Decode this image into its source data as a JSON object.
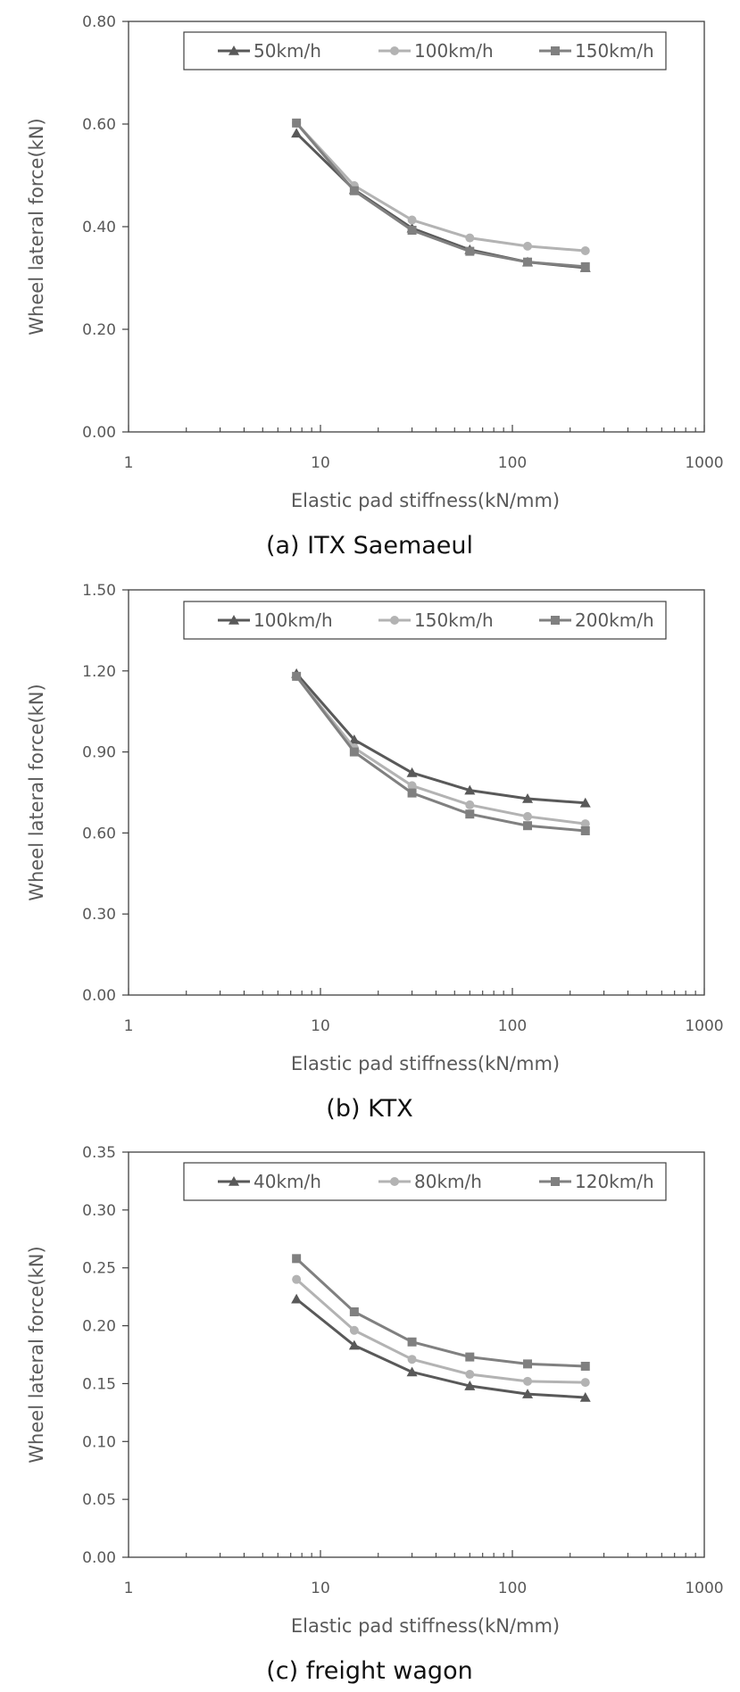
{
  "chart_data": [
    {
      "type": "line",
      "xscale": "log",
      "xlim": [
        1,
        1000
      ],
      "xticks": [
        "1",
        "10",
        "100",
        "1000"
      ],
      "ylim": [
        0,
        0.8
      ],
      "yticks": [
        "0.00",
        "0.20",
        "0.40",
        "0.60",
        "0.80"
      ],
      "xlabel": "Elastic pad stiffness(kN/mm)",
      "ylabel": "Wheel lateral force(kN)",
      "caption": "(a) ITX Saemaeul",
      "legend_position": "top",
      "grid": false,
      "x": [
        7.5,
        15,
        30,
        60,
        120,
        240
      ],
      "series": [
        {
          "name": "50km/h",
          "marker": "triangle",
          "color": "#595959",
          "values": [
            0.582,
            0.472,
            0.397,
            0.355,
            0.331,
            0.32
          ]
        },
        {
          "name": "100km/h",
          "marker": "circle",
          "color": "#b3b3b3",
          "values": [
            0.602,
            0.48,
            0.413,
            0.378,
            0.362,
            0.353
          ]
        },
        {
          "name": "150km/h",
          "marker": "square",
          "color": "#808080",
          "values": [
            0.602,
            0.47,
            0.393,
            0.352,
            0.331,
            0.322
          ]
        }
      ]
    },
    {
      "type": "line",
      "xscale": "log",
      "xlim": [
        1,
        1000
      ],
      "xticks": [
        "1",
        "10",
        "100",
        "1000"
      ],
      "ylim": [
        0,
        1.5
      ],
      "yticks": [
        "0.00",
        "0.30",
        "0.60",
        "0.90",
        "1.20",
        "1.50"
      ],
      "xlabel": "Elastic pad stiffness(kN/mm)",
      "ylabel": "Wheel lateral force(kN)",
      "caption": "(b) KTX",
      "legend_position": "top",
      "grid": false,
      "x": [
        7.5,
        15,
        30,
        60,
        120,
        240
      ],
      "series": [
        {
          "name": "100km/h",
          "marker": "triangle",
          "color": "#595959",
          "values": [
            1.19,
            0.945,
            0.823,
            0.758,
            0.727,
            0.711
          ]
        },
        {
          "name": "150km/h",
          "marker": "circle",
          "color": "#b3b3b3",
          "values": [
            1.18,
            0.915,
            0.775,
            0.704,
            0.661,
            0.634
          ]
        },
        {
          "name": "200km/h",
          "marker": "square",
          "color": "#808080",
          "values": [
            1.18,
            0.9,
            0.748,
            0.67,
            0.627,
            0.608
          ]
        }
      ]
    },
    {
      "type": "line",
      "xscale": "log",
      "xlim": [
        1,
        1000
      ],
      "xticks": [
        "1",
        "10",
        "100",
        "1000"
      ],
      "ylim": [
        0,
        0.35
      ],
      "yticks": [
        "0.00",
        "0.05",
        "0.10",
        "0.15",
        "0.20",
        "0.25",
        "0.30",
        "0.35"
      ],
      "xlabel": "Elastic pad stiffness(kN/mm)",
      "ylabel": "Wheel lateral force(kN)",
      "caption": "(c) freight wagon",
      "legend_position": "top",
      "grid": false,
      "x": [
        7.5,
        15,
        30,
        60,
        120,
        240
      ],
      "series": [
        {
          "name": "40km/h",
          "marker": "triangle",
          "color": "#595959",
          "values": [
            0.223,
            0.183,
            0.16,
            0.148,
            0.141,
            0.138
          ]
        },
        {
          "name": "80km/h",
          "marker": "circle",
          "color": "#b3b3b3",
          "values": [
            0.24,
            0.196,
            0.171,
            0.158,
            0.152,
            0.151
          ]
        },
        {
          "name": "120km/h",
          "marker": "square",
          "color": "#808080",
          "values": [
            0.258,
            0.212,
            0.186,
            0.173,
            0.167,
            0.165
          ]
        }
      ]
    }
  ]
}
